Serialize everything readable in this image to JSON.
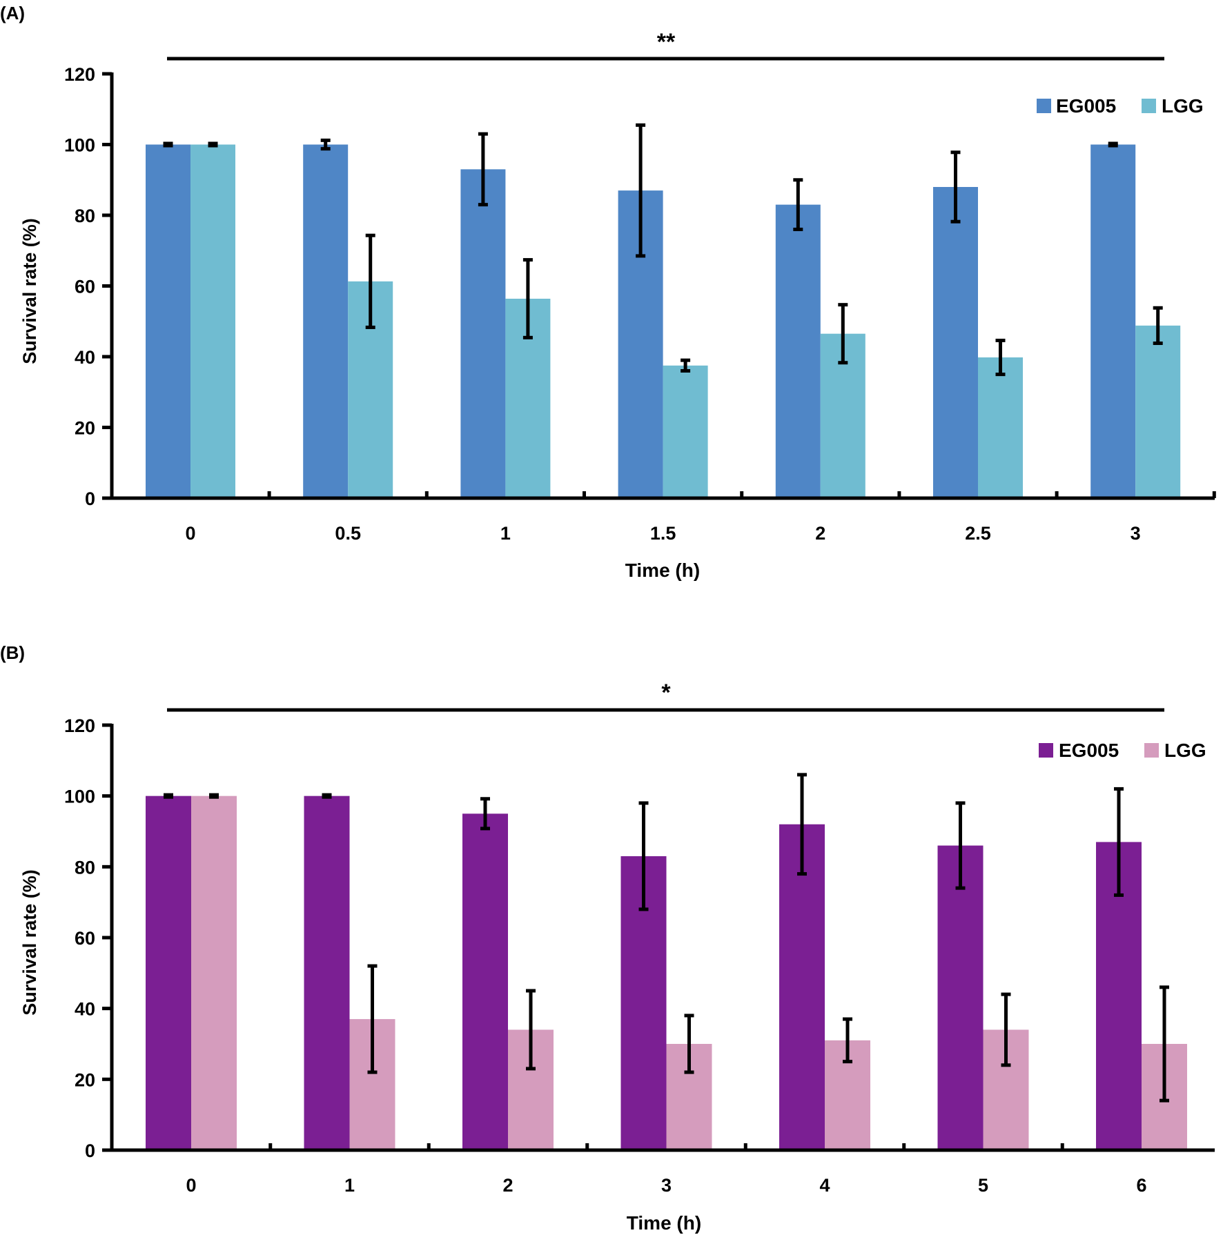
{
  "chart_data": [
    {
      "panel_label": "(A)",
      "type": "bar",
      "significance": "**",
      "xlabel": "Time (h)",
      "ylabel": "Survival rate (%)",
      "ylim": [
        0,
        120
      ],
      "yticks": [
        "0",
        "20",
        "40",
        "60",
        "80",
        "100",
        "120"
      ],
      "categories": [
        "0",
        "0.5",
        "1",
        "1.5",
        "2",
        "2.5",
        "3"
      ],
      "legend_position": "top-right",
      "series": [
        {
          "name": "EG005",
          "color": "#4f86c6",
          "values": [
            100,
            100,
            93,
            87,
            83,
            88,
            100
          ],
          "errors": [
            0.3,
            1.2,
            10,
            18.5,
            7,
            9.8,
            0.3
          ]
        },
        {
          "name": "LGG",
          "color": "#70bcd1",
          "values": [
            100,
            61.3,
            56.4,
            37.5,
            46.5,
            39.8,
            48.8
          ],
          "errors": [
            0.3,
            13,
            11,
            1.5,
            8.2,
            4.8,
            5
          ]
        }
      ]
    },
    {
      "panel_label": "(B)",
      "type": "bar",
      "significance": "*",
      "xlabel": "Time (h)",
      "ylabel": "Survival rate (%)",
      "ylim": [
        0,
        120
      ],
      "yticks": [
        "0",
        "20",
        "40",
        "60",
        "80",
        "100",
        "120"
      ],
      "categories": [
        "0",
        "1",
        "2",
        "3",
        "4",
        "5",
        "6"
      ],
      "legend_position": "top-right",
      "series": [
        {
          "name": "EG005",
          "color": "#7b1f93",
          "values": [
            100,
            100,
            95,
            83,
            92,
            86,
            87
          ],
          "errors": [
            0.3,
            0.3,
            4.2,
            15,
            14,
            12,
            15
          ]
        },
        {
          "name": "LGG",
          "color": "#d59cbd",
          "values": [
            100,
            37,
            34,
            30,
            31,
            34,
            30
          ],
          "errors": [
            0.3,
            15,
            11,
            8,
            6,
            10,
            16
          ]
        }
      ]
    }
  ]
}
